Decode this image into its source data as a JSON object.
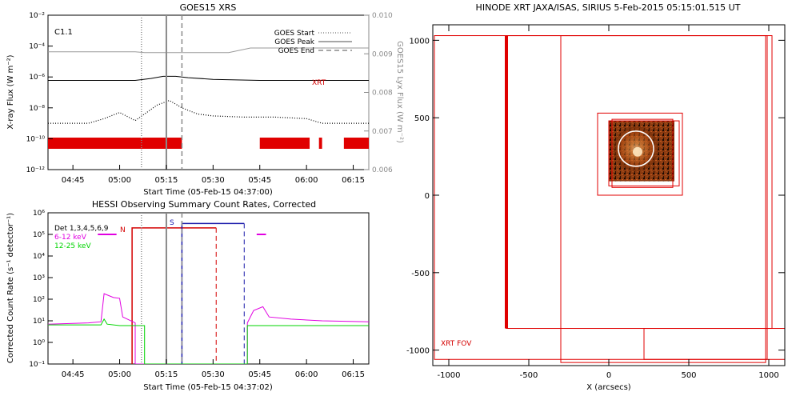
{
  "chart_data": [
    {
      "type": "line",
      "title": "GOES15 XRS",
      "xlabel": "Start Time (05-Feb-15 04:37:00)",
      "ylabel": "X-ray Flux (W m⁻²)",
      "y2label": "GOES15 Lyx Flux (W m⁻²)",
      "ylim": [
        1e-12,
        0.01
      ],
      "yscale": "log",
      "y2lim": [
        0.006,
        0.01
      ],
      "xlim": [
        "04:37",
        "06:20"
      ],
      "x_ticks": [
        "04:45",
        "05:00",
        "05:15",
        "05:30",
        "05:45",
        "06:00",
        "06:15"
      ],
      "y_ticks": [
        "10⁻¹²",
        "10⁻¹⁰",
        "10⁻⁸",
        "10⁻⁶",
        "10⁻⁴",
        "10⁻²"
      ],
      "y2_ticks": [
        "0.006",
        "0.007",
        "0.008",
        "0.009",
        "0.010"
      ],
      "class_label": "C1.1",
      "legend": [
        {
          "name": "GOES Start",
          "style": "dotted",
          "color": "#8a8a8a"
        },
        {
          "name": "GOES Peak",
          "style": "solid",
          "color": "#8a8a8a"
        },
        {
          "name": "GOES End",
          "style": "dashed",
          "color": "#8a8a8a"
        }
      ],
      "xrt_label": "XRT",
      "markers": {
        "start": "05:07",
        "peak": "05:15",
        "end": "05:20"
      },
      "series": [
        {
          "label": "Lyx flux",
          "axis": "right",
          "color": "#9a9a9a",
          "style": "solid",
          "x": [
            "04:37",
            "05:05",
            "05:08",
            "05:15",
            "05:25",
            "05:35",
            "05:42",
            "05:50",
            "06:20"
          ],
          "values": [
            0.00905,
            0.00905,
            0.00903,
            0.00903,
            0.00903,
            0.00903,
            0.00915,
            0.00915,
            0.00915
          ]
        },
        {
          "label": "Long channel",
          "axis": "left",
          "color": "#000000",
          "style": "solid",
          "x": [
            "04:37",
            "05:05",
            "05:10",
            "05:14",
            "05:18",
            "05:22",
            "05:30",
            "05:45",
            "06:20"
          ],
          "values": [
            6e-07,
            6e-07,
            8e-07,
            1.1e-06,
            1.1e-06,
            9e-07,
            7e-07,
            6e-07,
            6e-07
          ]
        },
        {
          "label": "Short channel",
          "axis": "left",
          "color": "#000000",
          "style": "dotted",
          "x": [
            "04:37",
            "04:50",
            "04:55",
            "05:00",
            "05:05",
            "05:08",
            "05:12",
            "05:16",
            "05:20",
            "05:25",
            "05:30",
            "05:40",
            "05:50",
            "06:00",
            "06:05",
            "06:20"
          ],
          "values": [
            1e-09,
            1e-09,
            2e-09,
            5e-09,
            1.5e-09,
            4e-09,
            1.5e-08,
            3e-08,
            1e-08,
            4e-09,
            3e-09,
            2.5e-09,
            2.5e-09,
            2e-09,
            1e-09,
            1e-09
          ]
        }
      ],
      "xrt_coverage": [
        [
          "04:37",
          "05:20"
        ],
        [
          "05:45",
          "06:01"
        ],
        [
          "06:04",
          "06:05"
        ],
        [
          "06:12",
          "06:20"
        ]
      ]
    },
    {
      "type": "line",
      "title": "HESSI Observing Summary Count Rates, Corrected",
      "xlabel": "Start Time (05-Feb-15 04:37:02)",
      "ylabel": "Corrected Count Rate (s⁻¹ detector⁻¹)",
      "yscale": "log",
      "ylim": [
        0.1,
        1000000.0
      ],
      "xlim": [
        "04:37",
        "06:20"
      ],
      "x_ticks": [
        "04:45",
        "05:00",
        "05:15",
        "05:30",
        "05:45",
        "06:00",
        "06:15"
      ],
      "y_ticks": [
        "10⁻¹",
        "10⁰",
        "10¹",
        "10²",
        "10³",
        "10⁴",
        "10⁵",
        "10⁶"
      ],
      "legend": [
        {
          "name": "Det 1,3,4,5,6,9",
          "color": "#000000"
        },
        {
          "name": "6-12 keV",
          "color": "#e100e1"
        },
        {
          "name": "12-25 keV",
          "color": "#00d400"
        }
      ],
      "markers": {
        "start": "05:07",
        "peak": "05:15",
        "end": "05:20"
      },
      "night_label": "N",
      "saa_label": "S",
      "night_interval": [
        "05:04",
        "05:31"
      ],
      "saa_interval": [
        "05:20",
        "05:40"
      ],
      "attenuator_interval": [
        "04:53",
        "04:59"
      ],
      "attenuator2_interval": [
        "05:44",
        "05:47"
      ],
      "series": [
        {
          "name": "6-12 keV",
          "color": "#e100e1",
          "x": [
            "04:37",
            "04:50",
            "04:54",
            "04:55",
            "04:58",
            "05:00",
            "05:01",
            "05:05",
            "05:05",
            "05:41",
            "05:41",
            "05:43",
            "05:46",
            "05:48",
            "05:55",
            "06:05",
            "06:20"
          ],
          "values": [
            7,
            8,
            9,
            180,
            120,
            110,
            15,
            8,
            0.1,
            0.1,
            8,
            30,
            45,
            15,
            12,
            10,
            9
          ]
        },
        {
          "name": "12-25 keV",
          "color": "#00d400",
          "x": [
            "04:37",
            "04:54",
            "04:55",
            "04:56",
            "05:00",
            "05:08",
            "05:08",
            "05:41",
            "05:41",
            "05:50",
            "06:20"
          ],
          "values": [
            6.5,
            6.5,
            12,
            7,
            6,
            6,
            0.1,
            0.1,
            6,
            6,
            6
          ]
        }
      ]
    },
    {
      "type": "scatter",
      "title": "HINODE XRT JAXA/ISAS, SIRIUS   5-Feb-2015 05:15:01.515 UT",
      "xlabel": "X (arcsecs)",
      "ylabel": "",
      "xlim": [
        -1100,
        1100
      ],
      "ylim": [
        -1100,
        1100
      ],
      "x_ticks": [
        "-1000",
        "-500",
        "0",
        "500",
        "1000"
      ],
      "y_ticks": [
        "-1000",
        "-500",
        "0",
        "500",
        "1000"
      ],
      "fov_label": "XRT FOV",
      "fov_boxes": [
        {
          "x0": -640,
          "x1": 1020,
          "y0": -860,
          "y1": 1030,
          "width": 1
        },
        {
          "x0": -1090,
          "x1": 990,
          "y0": -1060,
          "y1": 1030,
          "width": 1
        },
        {
          "x0": -300,
          "x1": 980,
          "y0": -1080,
          "y1": 1030,
          "width": 1
        },
        {
          "x0": 220,
          "x1": 1100,
          "y0": -1060,
          "y1": -860,
          "width": 1
        },
        {
          "x0": -70,
          "x1": 460,
          "y0": 0,
          "y1": 530,
          "width": 1
        },
        {
          "x0": 0,
          "x1": 440,
          "y0": 60,
          "y1": 480,
          "width": 1
        },
        {
          "x0": 20,
          "x1": 400,
          "y0": 50,
          "y1": 490,
          "width": 1
        }
      ],
      "fov_thick_edge": {
        "x": -640,
        "y0": -860,
        "y1": 1030
      },
      "image_box": {
        "x0": 0,
        "x1": 410,
        "y0": 90,
        "y1": 480
      },
      "circle": {
        "cx": 170,
        "cy": 300,
        "r": 110
      }
    }
  ]
}
